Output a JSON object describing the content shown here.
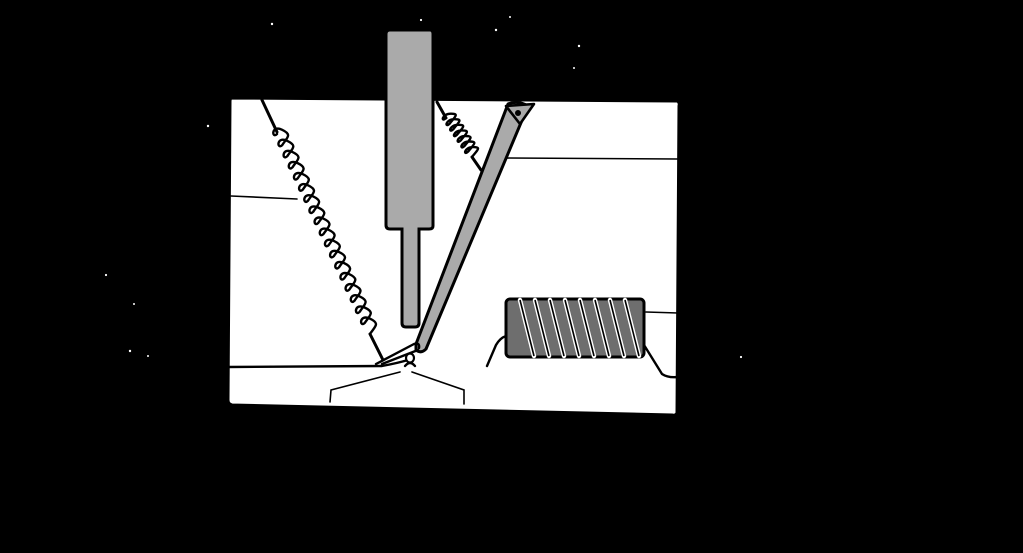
{
  "diagram": {
    "title": "",
    "colors": {
      "background": "#000000",
      "panel": "#ffffff",
      "ink": "#000000",
      "light_part": "#aaaaaa",
      "dark_part": "#6e6e6e"
    },
    "components": [
      "spring",
      "plunger",
      "small-spring",
      "pivot-lever",
      "solenoid-coil",
      "contact-switch",
      "left-wire",
      "right-wire"
    ],
    "label_leaders": 4,
    "label_texts": []
  }
}
